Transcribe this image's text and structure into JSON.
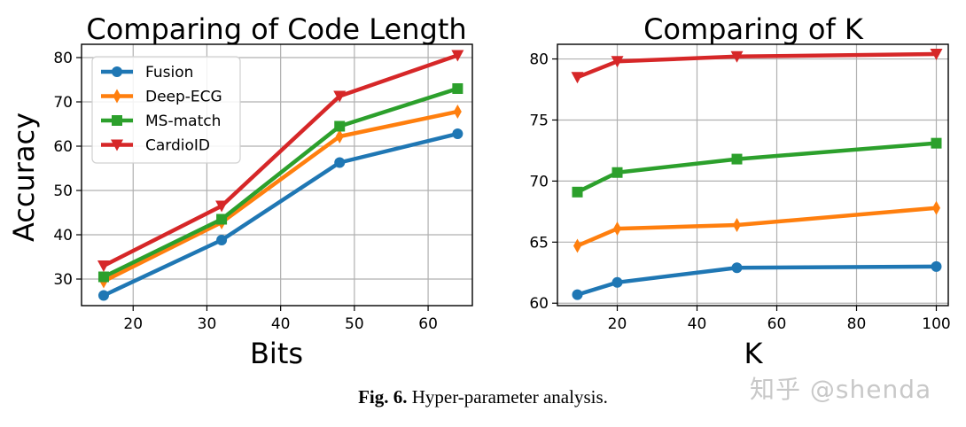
{
  "chart_data": [
    {
      "type": "line",
      "title": "Comparing of Code Length",
      "xlabel": "Bits",
      "ylabel": "Accuracy",
      "x": [
        16,
        32,
        48,
        64
      ],
      "xlim": [
        13,
        66
      ],
      "ylim": [
        24,
        83
      ],
      "xticks": [
        20,
        30,
        40,
        50,
        60
      ],
      "yticks": [
        30,
        40,
        50,
        60,
        70,
        80
      ],
      "grid": true,
      "legend": "top-left",
      "series": [
        {
          "name": "Fusion",
          "color": "#1f77b4",
          "marker": "circle",
          "values": [
            26.3,
            38.8,
            56.3,
            62.8
          ]
        },
        {
          "name": "Deep-ECG",
          "color": "#ff7f0e",
          "marker": "thin-diamond",
          "values": [
            29.5,
            42.8,
            62.2,
            67.8
          ]
        },
        {
          "name": "MS-match",
          "color": "#2ca02c",
          "marker": "square",
          "values": [
            30.5,
            43.5,
            64.5,
            73.0
          ]
        },
        {
          "name": "CardioID",
          "color": "#d62728",
          "marker": "triangle-down",
          "values": [
            33.0,
            46.5,
            71.3,
            80.5
          ]
        }
      ]
    },
    {
      "type": "line",
      "title": "Comparing of K",
      "xlabel": "K",
      "ylabel": "",
      "x": [
        10,
        20,
        50,
        100
      ],
      "xlim": [
        5,
        103
      ],
      "ylim": [
        59.8,
        81.2
      ],
      "xticks": [
        20,
        40,
        60,
        80,
        100
      ],
      "yticks": [
        60,
        65,
        70,
        75,
        80
      ],
      "grid": true,
      "legend": "none",
      "series": [
        {
          "name": "Fusion",
          "color": "#1f77b4",
          "marker": "circle",
          "values": [
            60.7,
            61.7,
            62.9,
            63.0
          ]
        },
        {
          "name": "Deep-ECG",
          "color": "#ff7f0e",
          "marker": "thin-diamond",
          "values": [
            64.7,
            66.1,
            66.4,
            67.8
          ]
        },
        {
          "name": "MS-match",
          "color": "#2ca02c",
          "marker": "square",
          "values": [
            69.1,
            70.7,
            71.8,
            73.1
          ]
        },
        {
          "name": "CardioID",
          "color": "#d62728",
          "marker": "triangle-down",
          "values": [
            78.5,
            79.8,
            80.2,
            80.4
          ]
        }
      ]
    }
  ],
  "caption": {
    "label": "Fig. 6.",
    "text": "Hyper-parameter analysis."
  },
  "watermark": "知乎 @shenda"
}
